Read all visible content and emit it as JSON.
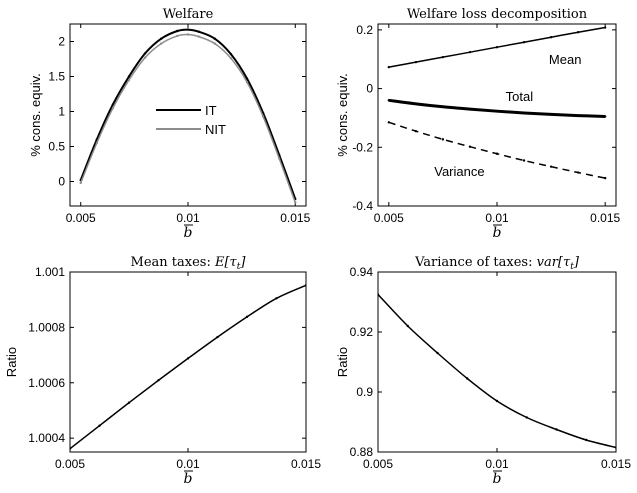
{
  "chart_data": [
    {
      "id": "welfare",
      "type": "line",
      "title": "Welfare",
      "xlabel": "b",
      "ylabel": "% cons. equiv.",
      "xlim": [
        0.0045,
        0.0155
      ],
      "ylim": [
        -0.35,
        2.25
      ],
      "xticks": [
        0.005,
        0.01,
        0.015
      ],
      "xtick_labels": [
        "0.005",
        "0.01",
        "0.015"
      ],
      "yticks": [
        0,
        0.5,
        1,
        1.5,
        2
      ],
      "ytick_labels": [
        "0",
        "0.5",
        "1",
        "1.5",
        "2"
      ],
      "legend": {
        "position": "center",
        "entries": [
          "IT",
          "NIT"
        ]
      },
      "series": [
        {
          "name": "IT",
          "color": "#000000",
          "line_style": "solid",
          "x": [
            0.005,
            0.00575,
            0.0065,
            0.00725,
            0.008,
            0.00875,
            0.0095,
            0.01,
            0.0105,
            0.01125,
            0.012,
            0.01275,
            0.0135,
            0.01425,
            0.015
          ],
          "y": [
            0.02,
            0.6,
            1.1,
            1.5,
            1.83,
            2.04,
            2.15,
            2.17,
            2.14,
            2.04,
            1.82,
            1.47,
            0.98,
            0.38,
            -0.25
          ]
        },
        {
          "name": "NIT",
          "color": "#8c8c8c",
          "line_style": "solid",
          "x": [
            0.005,
            0.00575,
            0.0065,
            0.00725,
            0.008,
            0.00875,
            0.0095,
            0.01,
            0.0105,
            0.01125,
            0.012,
            0.01275,
            0.0135,
            0.01425,
            0.015
          ],
          "y": [
            -0.02,
            0.55,
            1.05,
            1.45,
            1.77,
            1.97,
            2.08,
            2.1,
            2.07,
            1.97,
            1.76,
            1.42,
            0.93,
            0.33,
            -0.3
          ]
        }
      ]
    },
    {
      "id": "decomposition",
      "type": "line",
      "title": "Welfare loss decomposition",
      "xlabel": "b",
      "ylabel": "% cons. equiv.",
      "xlim": [
        0.0045,
        0.0155
      ],
      "ylim": [
        -0.4,
        0.22
      ],
      "xticks": [
        0.005,
        0.01,
        0.015
      ],
      "xtick_labels": [
        "0.005",
        "0.01",
        "0.015"
      ],
      "yticks": [
        -0.4,
        -0.2,
        0,
        0.2
      ],
      "ytick_labels": [
        "-0.4",
        "-0.2",
        "0",
        "0.2"
      ],
      "annotations": [
        {
          "text": "Mean",
          "x": 0.0124,
          "y": 0.1
        },
        {
          "text": "Total",
          "x": 0.0104,
          "y": -0.025
        },
        {
          "text": "Variance",
          "x": 0.0071,
          "y": -0.28
        }
      ],
      "series": [
        {
          "label": "Mean",
          "color": "#000000",
          "line_style": "solid",
          "line_weight": "thin",
          "x": [
            0.005,
            0.00625,
            0.0075,
            0.00875,
            0.01,
            0.01125,
            0.0125,
            0.01375,
            0.015
          ],
          "y": [
            0.073,
            0.09,
            0.107,
            0.124,
            0.141,
            0.158,
            0.175,
            0.192,
            0.208
          ]
        },
        {
          "label": "Total",
          "color": "#000000",
          "line_style": "solid",
          "line_weight": "thick",
          "x": [
            0.005,
            0.00625,
            0.0075,
            0.00875,
            0.01,
            0.01125,
            0.0125,
            0.01375,
            0.015
          ],
          "y": [
            -0.04,
            -0.052,
            -0.062,
            -0.07,
            -0.077,
            -0.083,
            -0.088,
            -0.092,
            -0.095
          ]
        },
        {
          "label": "Variance",
          "color": "#000000",
          "line_style": "dashed",
          "line_weight": "thin",
          "x": [
            0.005,
            0.00625,
            0.0075,
            0.00875,
            0.01,
            0.01125,
            0.0125,
            0.01375,
            0.015
          ],
          "y": [
            -0.115,
            -0.145,
            -0.173,
            -0.198,
            -0.222,
            -0.245,
            -0.266,
            -0.286,
            -0.305
          ]
        }
      ]
    },
    {
      "id": "mean-taxes",
      "type": "line",
      "title": "Mean taxes: ",
      "title_math": "E[τ_t]",
      "xlabel": "b",
      "ylabel": "Ratio",
      "xlim": [
        0.005,
        0.015
      ],
      "ylim": [
        1.00035,
        1.001
      ],
      "xticks": [
        0.005,
        0.01,
        0.015
      ],
      "xtick_labels": [
        "0.005",
        "0.01",
        "0.015"
      ],
      "yticks": [
        1.0004,
        1.0006,
        1.0008,
        1.001
      ],
      "ytick_labels": [
        "1.0004",
        "1.0006",
        "1.0008",
        "1.001"
      ],
      "series": [
        {
          "color": "#000000",
          "line_style": "solid",
          "x": [
            0.005,
            0.00625,
            0.0075,
            0.00875,
            0.01,
            0.01125,
            0.0125,
            0.01375,
            0.015
          ],
          "y": [
            1.000362,
            1.000445,
            1.000528,
            1.000609,
            1.000688,
            1.000765,
            1.000838,
            1.000905,
            1.000952
          ]
        }
      ]
    },
    {
      "id": "variance-taxes",
      "type": "line",
      "title": "Variance of taxes: ",
      "title_math": "var[τ_t]",
      "xlabel": "b",
      "ylabel": "Ratio",
      "xlim": [
        0.005,
        0.015
      ],
      "ylim": [
        0.88,
        0.94
      ],
      "xticks": [
        0.005,
        0.01,
        0.015
      ],
      "xtick_labels": [
        "0.005",
        "0.01",
        "0.015"
      ],
      "yticks": [
        0.88,
        0.9,
        0.92,
        0.94
      ],
      "ytick_labels": [
        "0.88",
        "0.9",
        "0.92",
        "0.94"
      ],
      "series": [
        {
          "color": "#000000",
          "line_style": "solid",
          "x": [
            0.005,
            0.00625,
            0.0075,
            0.00875,
            0.01,
            0.01125,
            0.0125,
            0.01375,
            0.015
          ],
          "y": [
            0.9325,
            0.922,
            0.913,
            0.9045,
            0.897,
            0.8915,
            0.8875,
            0.884,
            0.8815
          ]
        }
      ]
    }
  ]
}
